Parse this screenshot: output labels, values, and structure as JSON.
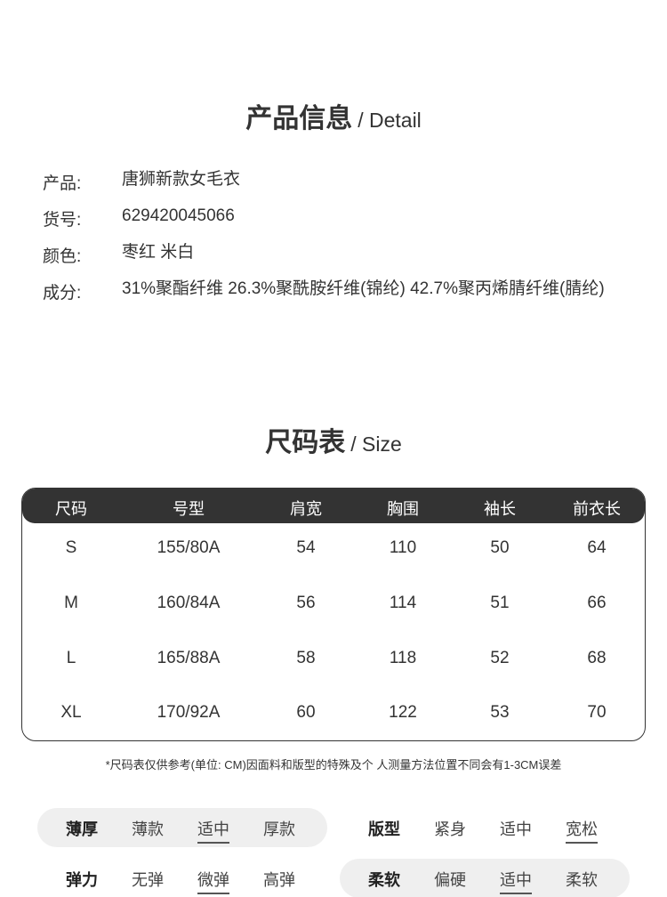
{
  "detail": {
    "title_cn": "产品信息",
    "title_en": "/ Detail",
    "rows": [
      {
        "key": "产品:",
        "value": "唐狮新款女毛衣"
      },
      {
        "key": "货号:",
        "value": "629420045066"
      },
      {
        "key": "颜色:",
        "value": "枣红 米白"
      },
      {
        "key": "成分:",
        "value": "31%聚酯纤维 26.3%聚酰胺纤维(锦纶) 42.7%聚丙烯腈纤维(腈纶)"
      }
    ]
  },
  "size": {
    "title_cn": "尺码表",
    "title_en": "/ Size",
    "headers": [
      "尺码",
      "号型",
      "肩宽",
      "胸围",
      "袖长",
      "前衣长"
    ],
    "rows": [
      [
        "S",
        "155/80A",
        "54",
        "110",
        "50",
        "64"
      ],
      [
        "M",
        "160/84A",
        "56",
        "114",
        "51",
        "66"
      ],
      [
        "L",
        "165/88A",
        "58",
        "118",
        "52",
        "68"
      ],
      [
        "XL",
        "170/92A",
        "60",
        "122",
        "53",
        "70"
      ]
    ],
    "note": "*尺码表仅供参考(单位: CM)因面料和版型的特殊及个 人测量方法位置不同会有1-3CM误差"
  },
  "attributes": [
    {
      "label": "薄厚",
      "options": [
        "薄款",
        "适中",
        "厚款"
      ],
      "selected": "适中"
    },
    {
      "label": "版型",
      "options": [
        "紧身",
        "适中",
        "宽松"
      ],
      "selected": "宽松"
    },
    {
      "label": "弹力",
      "options": [
        "无弹",
        "微弹",
        "高弹"
      ],
      "selected": "微弹"
    },
    {
      "label": "柔软",
      "options": [
        "偏硬",
        "适中",
        "柔软"
      ],
      "selected": "适中"
    }
  ]
}
